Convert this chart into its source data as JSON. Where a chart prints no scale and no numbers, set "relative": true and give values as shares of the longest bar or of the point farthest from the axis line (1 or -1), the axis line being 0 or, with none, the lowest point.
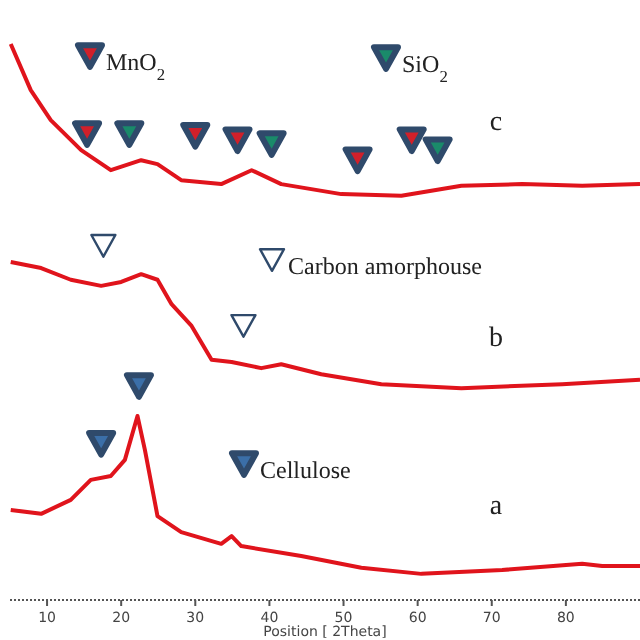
{
  "chart_data": {
    "type": "line",
    "relative": true,
    "xlabel": "Position [ 2Theta]",
    "xlim": [
      5,
      90
    ],
    "xticks": [
      10,
      20,
      30,
      40,
      50,
      60,
      70,
      80
    ],
    "tick_labels": "x",
    "line_style": "solid",
    "marker": "none",
    "series": [
      {
        "x": [
          5.1,
          9.2,
          13.2,
          15.9,
          18.6,
          20.5,
          22.2,
          23.2,
          24.9,
          28.1,
          33.5,
          34.9,
          36.2,
          44.3,
          52.4,
          60.5,
          71.4,
          82.2,
          84.9,
          90
        ],
        "values": [
          0.162,
          0.155,
          0.18,
          0.216,
          0.223,
          0.252,
          0.331,
          0.27,
          0.151,
          0.122,
          0.101,
          0.115,
          0.097,
          0.079,
          0.058,
          0.047,
          0.054,
          0.065,
          0.061,
          0.061
        ],
        "color": "#e0141c"
      },
      {
        "x": [
          5.1,
          9.2,
          13.2,
          17.3,
          20,
          22.7,
          24.9,
          26.8,
          29.5,
          32.2,
          34.9,
          38.9,
          41.6,
          47,
          55.1,
          65.9,
          79.5,
          90
        ],
        "values": [
          0.608,
          0.597,
          0.576,
          0.565,
          0.572,
          0.586,
          0.576,
          0.532,
          0.493,
          0.432,
          0.428,
          0.417,
          0.424,
          0.406,
          0.388,
          0.381,
          0.388,
          0.396
        ],
        "color": "#e0141c"
      },
      {
        "x": [
          5.1,
          7.8,
          10.5,
          14.6,
          18.6,
          22.7,
          24.9,
          28.1,
          33.5,
          37.6,
          41.6,
          49.7,
          57.8,
          65.9,
          74.1,
          82.2,
          90
        ],
        "values": [
          1,
          0.917,
          0.863,
          0.809,
          0.773,
          0.791,
          0.784,
          0.755,
          0.748,
          0.773,
          0.748,
          0.73,
          0.727,
          0.745,
          0.748,
          0.745,
          0.748
        ],
        "color": "#e0141c"
      },
      {
        "type": "scatter",
        "name": "MnO$_{2}$",
        "marker": "triangle",
        "color": "#d0202a",
        "x": [
          15.4,
          30,
          35.7,
          51.9,
          59.2
        ],
        "values": [
          0.838,
          0.835,
          0.827,
          0.791,
          0.827
        ]
      },
      {
        "type": "scatter",
        "name": "SiO$_{2}$",
        "marker": "triangle",
        "color": "#1a8a6a",
        "x": [
          21.1,
          40.3,
          62.7
        ],
        "values": [
          0.838,
          0.82,
          0.809
        ]
      },
      {
        "type": "scatter",
        "name": "Carbon amorphouse",
        "marker": "triangle",
        "color": "#ffffff",
        "x": [
          17.6,
          36.5
        ],
        "values": [
          0.637,
          0.493
        ]
      },
      {
        "type": "scatter",
        "name": "Cellulose",
        "marker": "triangle",
        "color": "#3b6fa8",
        "x": [
          17.3,
          22.4
        ],
        "values": [
          0.281,
          0.385
        ]
      }
    ],
    "legend": "top left",
    "annotations": [
      "c",
      "b",
      "a"
    ]
  }
}
